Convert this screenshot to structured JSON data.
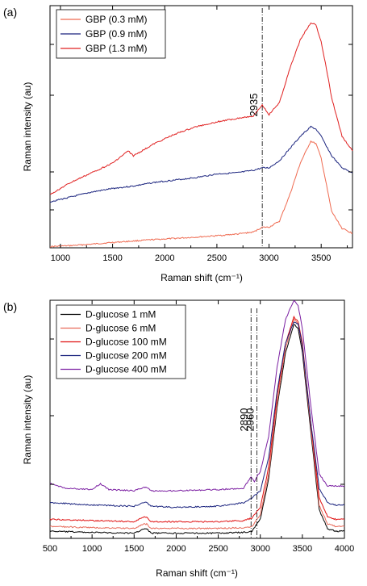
{
  "chart_data": [
    {
      "type": "line",
      "panel_label": "(a)",
      "xlabel": "Raman shift (cm⁻¹)",
      "ylabel": "Raman intensity (au)",
      "xlim": [
        900,
        3800
      ],
      "ylim": [
        0,
        100
      ],
      "x_ticks": [
        1000,
        1500,
        2000,
        2500,
        3000,
        3500
      ],
      "y_tick_labels_shown": false,
      "legend_position": "top-left",
      "annotations": [
        {
          "text": "2935",
          "x": 2935,
          "style": "dash-dot vertical line"
        }
      ],
      "series": [
        {
          "name": "GBP (0.3 mM)",
          "color": "#ef6a50",
          "x": [
            900,
            1100,
            1300,
            1500,
            1700,
            1900,
            2100,
            2300,
            2500,
            2700,
            2850,
            2935,
            3000,
            3100,
            3200,
            3300,
            3400,
            3450,
            3500,
            3550,
            3600,
            3700,
            3800
          ],
          "y": [
            0.5,
            0.9,
            1.5,
            2.2,
            2.8,
            3.4,
            3.9,
            4.4,
            5.0,
            5.7,
            6.5,
            8.5,
            8.5,
            11,
            22,
            35,
            44,
            43,
            37,
            26,
            15,
            8,
            6
          ]
        },
        {
          "name": "GBP (0.9 mM)",
          "color": "#1a237e",
          "x": [
            900,
            1100,
            1300,
            1500,
            1700,
            1900,
            2100,
            2300,
            2500,
            2700,
            2850,
            2935,
            3000,
            3100,
            3200,
            3300,
            3400,
            3450,
            3500,
            3550,
            3600,
            3700,
            3800
          ],
          "y": [
            19,
            21,
            23,
            24.5,
            25.5,
            27,
            28,
            29,
            30.5,
            31,
            32,
            33,
            33,
            36,
            41,
            46,
            50,
            49,
            46,
            42,
            38,
            33,
            31
          ]
        },
        {
          "name": "GBP (1.3 mM)",
          "color": "#e02020",
          "x": [
            900,
            1100,
            1300,
            1500,
            1650,
            1700,
            1900,
            2100,
            2300,
            2500,
            2700,
            2850,
            2935,
            3000,
            3100,
            3200,
            3300,
            3400,
            3450,
            3500,
            3550,
            3600,
            3700,
            3800
          ],
          "y": [
            22,
            27,
            31,
            35,
            40,
            38,
            43,
            47,
            50,
            52,
            53.5,
            54.5,
            59,
            55,
            60,
            74,
            86,
            93,
            92,
            85,
            74,
            62,
            46,
            40
          ]
        }
      ]
    },
    {
      "type": "line",
      "panel_label": "(b)",
      "xlabel": "Raman shift (cm⁻¹)",
      "ylabel": "Raman intensity (au)",
      "xlim": [
        500,
        4000
      ],
      "ylim": [
        0,
        100
      ],
      "x_ticks": [
        500,
        1000,
        1500,
        2000,
        2500,
        3000,
        3500,
        4000
      ],
      "y_tick_labels_shown": false,
      "legend_position": "top-left",
      "annotations": [
        {
          "text": "2890",
          "x": 2890,
          "style": "dash-dot vertical line"
        },
        {
          "text": "2960",
          "x": 2960,
          "style": "dash-dot vertical line"
        }
      ],
      "series": [
        {
          "name": "D-glucose 1 mM",
          "color": "#000000",
          "x": [
            500,
            1000,
            1500,
            1620,
            1650,
            1700,
            2000,
            2500,
            2800,
            2900,
            3000,
            3100,
            3200,
            3300,
            3400,
            3450,
            3500,
            3600,
            3700,
            3800,
            3900,
            4000
          ],
          "y": [
            3,
            2.5,
            2.2,
            4,
            4,
            2.2,
            2.2,
            2.2,
            2.5,
            3,
            8,
            25,
            55,
            78,
            90,
            88,
            78,
            45,
            12,
            4,
            3,
            3
          ]
        },
        {
          "name": "D-glucose 6 mM",
          "color": "#e86a5a",
          "x": [
            500,
            1000,
            1500,
            1620,
            1650,
            1700,
            2000,
            2500,
            2800,
            2900,
            3000,
            3100,
            3200,
            3300,
            3400,
            3450,
            3500,
            3600,
            3700,
            3800,
            3900,
            4000
          ],
          "y": [
            5,
            4.5,
            4.2,
            6,
            6,
            4.2,
            4.2,
            4.2,
            4.5,
            5,
            10,
            27,
            57,
            80,
            92,
            90,
            80,
            47,
            14,
            6,
            5,
            5
          ]
        },
        {
          "name": "D-glucose 100 mM",
          "color": "#e01010",
          "x": [
            500,
            1000,
            1500,
            1620,
            1650,
            1700,
            2000,
            2500,
            2800,
            2900,
            3000,
            3100,
            3200,
            3300,
            3400,
            3450,
            3500,
            3600,
            3700,
            3800,
            3900,
            4000
          ],
          "y": [
            8,
            7.5,
            7,
            9,
            9,
            7,
            7,
            7,
            7.5,
            8.5,
            13,
            30,
            60,
            82,
            93,
            91,
            82,
            49,
            17,
            9,
            8,
            8
          ]
        },
        {
          "name": "D-glucose 200 mM",
          "color": "#1a237e",
          "x": [
            500,
            1000,
            1500,
            1620,
            1650,
            1700,
            2000,
            2500,
            2800,
            2900,
            3000,
            3100,
            3200,
            3300,
            3400,
            3450,
            3500,
            3600,
            3700,
            3800,
            3900,
            4000
          ],
          "y": [
            15,
            14,
            13.5,
            15,
            15,
            13.5,
            13,
            13.5,
            15,
            17,
            20,
            34,
            62,
            82,
            91,
            90,
            81,
            49,
            21,
            15,
            14,
            14
          ]
        },
        {
          "name": "D-glucose 400 mM",
          "color": "#7b1fa2",
          "x": [
            500,
            700,
            1000,
            1100,
            1200,
            1500,
            1620,
            1650,
            1700,
            2000,
            2500,
            2800,
            2890,
            2930,
            2960,
            3000,
            3100,
            3200,
            3300,
            3400,
            3450,
            3500,
            3600,
            3700,
            3800,
            3900,
            4000
          ],
          "y": [
            23,
            21,
            20.5,
            23,
            20.5,
            20,
            21.5,
            21.5,
            20,
            20,
            20.5,
            21,
            26,
            24,
            26,
            28,
            43,
            72,
            92,
            100,
            98,
            88,
            56,
            27,
            22,
            22,
            22
          ]
        }
      ]
    }
  ]
}
